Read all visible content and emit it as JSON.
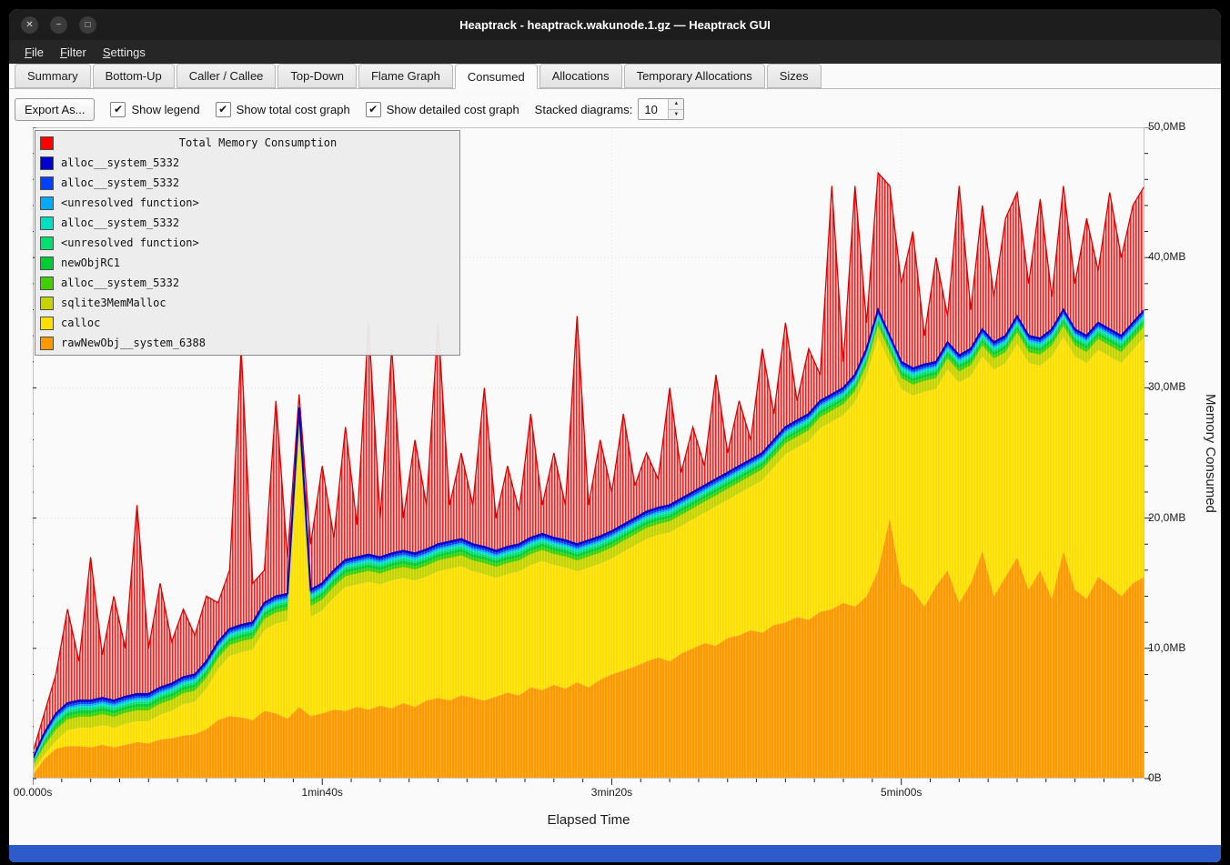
{
  "window": {
    "title": "Heaptrack - heaptrack.wakunode.1.gz — Heaptrack GUI"
  },
  "icons": {
    "close": "✕",
    "minimize": "−",
    "maximize": "□",
    "check": "✔",
    "spin_up": "▲",
    "spin_down": "▼"
  },
  "menu": {
    "items": [
      "File",
      "Filter",
      "Settings"
    ]
  },
  "tabs": {
    "items": [
      "Summary",
      "Bottom-Up",
      "Caller / Callee",
      "Top-Down",
      "Flame Graph",
      "Consumed",
      "Allocations",
      "Temporary Allocations",
      "Sizes"
    ],
    "active": "Consumed"
  },
  "toolbar": {
    "export_label": "Export As...",
    "checkboxes": [
      {
        "label": "Show legend",
        "checked": true
      },
      {
        "label": "Show total cost graph",
        "checked": true
      },
      {
        "label": "Show detailed cost graph",
        "checked": true
      }
    ],
    "stacked_label": "Stacked diagrams:",
    "stacked_value": "10"
  },
  "legend": {
    "title": "Total Memory Consumption",
    "title_color": "#ff0000",
    "entries": [
      {
        "label": "alloc__system_5332",
        "color": "#0000d0"
      },
      {
        "label": "alloc__system_5332",
        "color": "#0040ff"
      },
      {
        "label": "<unresolved function>",
        "color": "#00aaff"
      },
      {
        "label": "alloc__system_5332",
        "color": "#00e0c0"
      },
      {
        "label": "<unresolved function>",
        "color": "#00e070"
      },
      {
        "label": "newObjRC1",
        "color": "#00cc33"
      },
      {
        "label": "alloc__system_5332",
        "color": "#40d000"
      },
      {
        "label": "sqlite3MemMalloc",
        "color": "#c8d400"
      },
      {
        "label": "calloc",
        "color": "#ffdf00"
      },
      {
        "label": "rawNewObj__system_6388",
        "color": "#ff9900"
      }
    ]
  },
  "axes": {
    "xlabel": "Elapsed Time",
    "ylabel": "Memory Consumed",
    "x_ticks": [
      {
        "label": "00.000s",
        "value": 0
      },
      {
        "label": "1min40s",
        "value": 100
      },
      {
        "label": "3min20s",
        "value": 200
      },
      {
        "label": "5min00s",
        "value": 300
      }
    ],
    "y_ticks": [
      {
        "label": "0B",
        "value": 0
      },
      {
        "label": "10,0MB",
        "value": 10
      },
      {
        "label": "20,0MB",
        "value": 20
      },
      {
        "label": "30,0MB",
        "value": 30
      },
      {
        "label": "40,0MB",
        "value": 40
      },
      {
        "label": "50,0MB",
        "value": 50
      }
    ]
  },
  "chart_data": {
    "type": "area",
    "stacked": true,
    "title": "Total Memory Consumption",
    "xlabel": "Elapsed Time",
    "ylabel": "Memory Consumed",
    "unit": "MB",
    "x_range_seconds": [
      0,
      384
    ],
    "y_range": [
      0,
      50
    ],
    "grid": true,
    "legend_position": "top-left",
    "x_seconds": [
      0,
      4,
      8,
      12,
      16,
      20,
      24,
      28,
      32,
      36,
      40,
      44,
      48,
      52,
      56,
      60,
      64,
      68,
      72,
      76,
      80,
      84,
      88,
      92,
      96,
      100,
      104,
      108,
      112,
      116,
      120,
      124,
      128,
      132,
      136,
      140,
      144,
      148,
      152,
      156,
      160,
      164,
      168,
      172,
      176,
      180,
      184,
      188,
      192,
      196,
      200,
      204,
      208,
      212,
      216,
      220,
      224,
      228,
      232,
      236,
      240,
      244,
      248,
      252,
      256,
      260,
      264,
      268,
      272,
      276,
      280,
      284,
      288,
      292,
      296,
      300,
      304,
      308,
      312,
      316,
      320,
      324,
      328,
      332,
      336,
      340,
      344,
      348,
      352,
      356,
      360,
      364,
      368,
      372,
      376,
      380,
      384
    ],
    "cumulative_mb": {
      "rawNewObj__system_6388": [
        0.3,
        1.5,
        2.3,
        2.5,
        2.5,
        2.4,
        2.6,
        2.4,
        2.6,
        2.8,
        2.7,
        3,
        3.1,
        3.3,
        3.4,
        3.8,
        4.5,
        4.8,
        4.7,
        4.5,
        5.2,
        5,
        4.6,
        5.5,
        4.8,
        5,
        5.3,
        5.2,
        5.5,
        5.3,
        5.6,
        5.4,
        5.8,
        5.5,
        6,
        6.2,
        6,
        6.4,
        6.2,
        6,
        6.3,
        6.6,
        6.4,
        7,
        6.8,
        7.2,
        6.9,
        7.4,
        7,
        7.6,
        8,
        8.3,
        8.6,
        9,
        9.3,
        9,
        9.6,
        10,
        10.4,
        10.2,
        10.8,
        11,
        11.4,
        11.2,
        11.8,
        12,
        12.4,
        12.2,
        12.8,
        13,
        13.5,
        13.2,
        14,
        16,
        20,
        15,
        14.5,
        13.2,
        14.8,
        16,
        13.5,
        15,
        17.5,
        14,
        15.5,
        17,
        14.5,
        16,
        13.8,
        17.5,
        14.5,
        13.8,
        15.5,
        14.8,
        14,
        15,
        15.5
      ],
      "calloc_top": [
        0.6,
        1.8,
        2.9,
        3.7,
        3.9,
        3.9,
        4.1,
        3.9,
        4.2,
        4.4,
        4.4,
        4.9,
        5.2,
        5.7,
        5.9,
        6.9,
        8.4,
        9.4,
        9.7,
        9.9,
        11.4,
        11.9,
        12.1,
        26.4,
        12.4,
        12.9,
        13.9,
        14.7,
        14.9,
        15.1,
        14.9,
        15.2,
        15.4,
        15.2,
        15.5,
        15.9,
        16.1,
        16.3,
        15.9,
        15.7,
        15.4,
        15.7,
        15.9,
        16.4,
        16.7,
        16.4,
        16.2,
        15.9,
        16.2,
        16.5,
        16.9,
        17.4,
        17.9,
        18.4,
        18.7,
        18.9,
        19.4,
        19.9,
        20.4,
        20.9,
        21.4,
        21.9,
        22.4,
        22.9,
        23.9,
        24.9,
        25.4,
        25.9,
        26.9,
        27.4,
        27.9,
        28.9,
        30.9,
        33.9,
        31.9,
        29.9,
        29.4,
        29.7,
        29.9,
        31.4,
        30.4,
        30.9,
        32.4,
        31.4,
        31.9,
        33.4,
        31.9,
        31.7,
        32.4,
        33.9,
        32.4,
        31.9,
        32.9,
        32.4,
        31.9,
        32.9,
        33.9
      ],
      "solid_stack_top": [
        1.5,
        3.5,
        5,
        5.8,
        6,
        6,
        6.2,
        6,
        6.3,
        6.5,
        6.5,
        7,
        7.3,
        7.8,
        8,
        9,
        10.5,
        11.5,
        11.8,
        12,
        13.5,
        14,
        14.2,
        28.5,
        14.5,
        15,
        16,
        16.8,
        17,
        17.2,
        17,
        17.3,
        17.5,
        17.3,
        17.6,
        18,
        18.2,
        18.4,
        18,
        17.8,
        17.5,
        17.8,
        18,
        18.5,
        18.8,
        18.5,
        18.3,
        18,
        18.3,
        18.6,
        19,
        19.5,
        20,
        20.5,
        20.8,
        21,
        21.5,
        22,
        22.5,
        23,
        23.5,
        24,
        24.5,
        25,
        26,
        27,
        27.5,
        28,
        29,
        29.5,
        30,
        31,
        33,
        36,
        34,
        32,
        31.5,
        31.8,
        32,
        33.5,
        32.5,
        33,
        34.5,
        33.5,
        34,
        35.5,
        34,
        33.8,
        34.5,
        36,
        34.5,
        34,
        35,
        34.5,
        34,
        35,
        36
      ],
      "total_memory_consumption": [
        2,
        5,
        8,
        13,
        9,
        17,
        9.5,
        14,
        10,
        21,
        10,
        15,
        10.5,
        13,
        11,
        14,
        13.5,
        16,
        33,
        15,
        16,
        29,
        17,
        29.5,
        18,
        24,
        18.5,
        27,
        19.5,
        35,
        20,
        33,
        20,
        26,
        21,
        35,
        21,
        25,
        21,
        30,
        20,
        24,
        20.5,
        28,
        21,
        25,
        21,
        35.5,
        21,
        26,
        22,
        28,
        22.5,
        25,
        23,
        30,
        23.5,
        27,
        24,
        31,
        25,
        29,
        26,
        33,
        28,
        35,
        29,
        33,
        31,
        45.5,
        32,
        45.5,
        35,
        46.5,
        45.5,
        38,
        42,
        34,
        40,
        35.5,
        45.5,
        36,
        44,
        37,
        43,
        45,
        38,
        44.5,
        37,
        45.5,
        38,
        43,
        39,
        45,
        40,
        44,
        45.5
      ]
    },
    "series_colors": {
      "total": "#ff0000",
      "solid_top_line": "#0000d0",
      "calloc": "#ffdf00",
      "rawNewObj__system_6388": "#ff9900"
    },
    "upper_bands": [
      {
        "name": "sqlite3MemMalloc",
        "color": "#c8d400",
        "weight": 0.4
      },
      {
        "name": "alloc__system_5332",
        "color": "#40d000",
        "weight": 0.12
      },
      {
        "name": "newObjRC1",
        "color": "#00cc33",
        "weight": 0.12
      },
      {
        "name": "<unresolved function>",
        "color": "#00e070",
        "weight": 0.08
      },
      {
        "name": "alloc__system_5332",
        "color": "#00e0c0",
        "weight": 0.07
      },
      {
        "name": "<unresolved function>",
        "color": "#00aaff",
        "weight": 0.07
      },
      {
        "name": "alloc__system_5332",
        "color": "#0040ff",
        "weight": 0.07
      },
      {
        "name": "alloc__system_5332",
        "color": "#0000d0",
        "weight": 0.07
      }
    ]
  }
}
